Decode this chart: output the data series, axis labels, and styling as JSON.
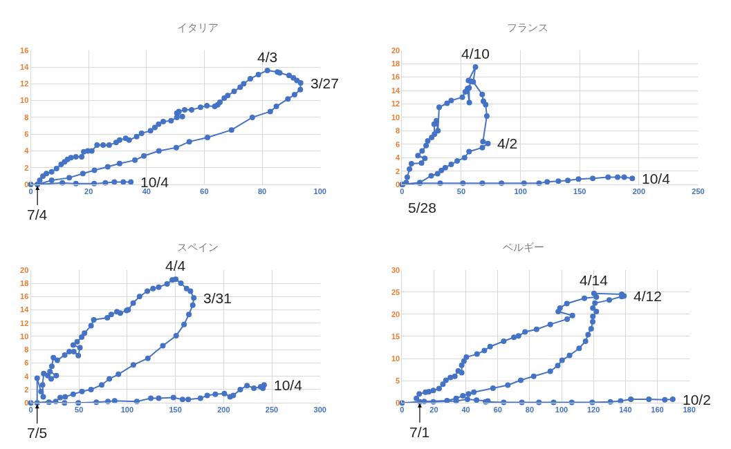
{
  "chart_data": [
    {
      "type": "line",
      "title": "イタリア",
      "marker": "circle",
      "grid": true,
      "xlim": [
        0,
        100
      ],
      "xticks": [
        0,
        20,
        40,
        60,
        80,
        100
      ],
      "ylim": [
        0,
        16
      ],
      "yticks": [
        0,
        2,
        4,
        6,
        8,
        10,
        12,
        14,
        16
      ],
      "series": [
        {
          "color": "#4472c4",
          "x": [
            0,
            2.3,
            7.2,
            13.3,
            18,
            22,
            26.6,
            30.7,
            36,
            39.1,
            44.3,
            50.3,
            54.8,
            61.1,
            69.4,
            76.6,
            82.8,
            84.9,
            88.9,
            91.2,
            93.2,
            93.3,
            92,
            90.8,
            89.3,
            86.1,
            85.3,
            81.8,
            78.7,
            75.9,
            73.6,
            72.4,
            70.3,
            68.1,
            66.9,
            65.4,
            64.6,
            63.6,
            60.9,
            58.7,
            55.6,
            53.2,
            51.2,
            50.5,
            52.4,
            50.5,
            48.5,
            45.8,
            44.2,
            42.9,
            41.4,
            38.3,
            36.6,
            34,
            32.8,
            30.7,
            29.5,
            27.1,
            25,
            22.9,
            21.1,
            19.7,
            18.3,
            17.6,
            15.6,
            13.9,
            12.7,
            11.7,
            10.5,
            8.9,
            7.2,
            5.4,
            4.2,
            3.1,
            2.3,
            10.9,
            15.6,
            21.9,
            25.8,
            28.9,
            32,
            34.6
          ],
          "values": [
            0,
            0,
            0.5,
            0.8,
            1.3,
            1.7,
            2.1,
            2.5,
            2.9,
            3.4,
            4.0,
            4.4,
            5.1,
            5.6,
            6.5,
            8.0,
            8.7,
            9.3,
            10.2,
            10.7,
            11.3,
            12.1,
            12.4,
            12.7,
            13.0,
            13.3,
            13.4,
            13.6,
            13.1,
            12.6,
            12.0,
            11.6,
            11.1,
            10.6,
            10.3,
            9.8,
            9.5,
            9.3,
            9.4,
            9.2,
            8.9,
            8.9,
            8.7,
            8.5,
            8.1,
            8.0,
            7.6,
            7.5,
            7.2,
            6.8,
            6.4,
            6.1,
            5.7,
            5.3,
            5.5,
            5.3,
            5.0,
            4.7,
            4.7,
            4.7,
            4.0,
            4.0,
            3.9,
            3.3,
            3.3,
            3.2,
            3.0,
            2.7,
            2.4,
            1.9,
            1.5,
            1.3,
            1.0,
            0.5,
            0,
            0.2,
            0.1,
            0.1,
            0.2,
            0.3,
            0.3,
            0.3
          ]
        }
      ],
      "annotations": [
        {
          "text": "4/3",
          "x": 81.8,
          "y": 13.6
        },
        {
          "text": "3/27",
          "x": 93.3,
          "y": 12.1
        },
        {
          "text": "10/4",
          "x": 34.6,
          "y": 0.3
        },
        {
          "text": "7/4",
          "x": 2.3,
          "y": 0
        }
      ]
    },
    {
      "type": "line",
      "title": "フランス",
      "marker": "circle",
      "grid": true,
      "xlim": [
        0,
        250
      ],
      "xticks": [
        0,
        50,
        100,
        150,
        200,
        250
      ],
      "ylim": [
        0,
        20
      ],
      "yticks": [
        0,
        2,
        4,
        6,
        8,
        10,
        12,
        14,
        16,
        18,
        20
      ],
      "series": [
        {
          "color": "#4472c4",
          "x": [
            0,
            15,
            24.6,
            30,
            33.2,
            36.5,
            41.5,
            46.6,
            52.8,
            56.6,
            67.8,
            72.5,
            68.3,
            71.6,
            70.6,
            68.7,
            67.7,
            60.1,
            62,
            56.1,
            58,
            56.6,
            56.8,
            55.3,
            53.4,
            50.9,
            41.5,
            38,
            31.3,
            30.3,
            29,
            27.1,
            27.4,
            25,
            21.7,
            20.3,
            16.9,
            13.4,
            19.2,
            16.5,
            7.9,
            6.3,
            4.4,
            3.5,
            0.6,
            15,
            32.2,
            51.4,
            67.8,
            84,
            103,
            115.7,
            122.5,
            132,
            140,
            149,
            161,
            174,
            182,
            187.6,
            194.4
          ],
          "values": [
            0,
            0.3,
            1.3,
            1.6,
            2.1,
            2.5,
            3.0,
            3.5,
            4.0,
            4.9,
            5.5,
            6.1,
            6.4,
            10.2,
            11.9,
            12.4,
            13.4,
            15.3,
            17.5,
            15.5,
            15.4,
            14.4,
            12.2,
            14.3,
            13.8,
            13.0,
            12.5,
            12.1,
            11.5,
            8.0,
            9.5,
            9.0,
            7.5,
            7.0,
            6.5,
            5.8,
            5.0,
            4.3,
            3.9,
            3.2,
            3.1,
            2.3,
            1.1,
            0.3,
            0,
            0.2,
            0.2,
            0.2,
            0.2,
            0.2,
            0.2,
            0.2,
            0.4,
            0.5,
            0.6,
            0.8,
            0.9,
            1.1,
            1.1,
            1.1,
            0.9
          ]
        }
      ],
      "annotations": [
        {
          "text": "4/10",
          "x": 62,
          "y": 17.5
        },
        {
          "text": "4/2",
          "x": 72.5,
          "y": 6.1
        },
        {
          "text": "10/4",
          "x": 194.4,
          "y": 0.9
        },
        {
          "text": "5/28",
          "x": 0.6,
          "y": 0
        }
      ]
    },
    {
      "type": "line",
      "title": "スペイン",
      "marker": "circle",
      "grid": true,
      "xlim": [
        0,
        300
      ],
      "xticks": [
        0,
        50,
        100,
        150,
        200,
        250,
        300
      ],
      "ylim": [
        0,
        20
      ],
      "yticks": [
        0,
        2,
        4,
        6,
        8,
        10,
        12,
        14,
        16,
        18,
        20
      ],
      "series": [
        {
          "color": "#4472c4",
          "x": [
            0,
            25.8,
            30.5,
            35.7,
            44,
            53.1,
            62.5,
            73.5,
            81.5,
            90.9,
            106.4,
            121.4,
            137,
            150.8,
            159,
            164,
            168,
            169.1,
            165.6,
            161.6,
            155.7,
            150.3,
            146.8,
            141.4,
            132.7,
            126.8,
            120.9,
            112.8,
            106.2,
            101,
            99.4,
            92.8,
            89.3,
            83.4,
            79.4,
            65.3,
            62.5,
            55.7,
            52.8,
            48.1,
            44,
            51,
            49.3,
            44.6,
            39.9,
            35.2,
            27.5,
            23.5,
            21.8,
            19.9,
            26.4,
            21.1,
            17.6,
            13.4,
            12.2,
            12.9,
            10.6,
            6.6,
            6.6,
            18.8,
            35,
            49.3,
            68,
            80,
            87,
            110,
            124.5,
            132.7,
            148,
            157.4,
            163.3,
            176,
            183,
            191.4,
            200.8,
            206.7,
            210,
            217.3,
            224.3,
            231.4,
            238.4,
            242,
            240.8
          ],
          "values": [
            0,
            0.2,
            0.8,
            0.9,
            1.3,
            1.7,
            2.0,
            2.7,
            3.6,
            4.3,
            5.7,
            6.7,
            8.6,
            10.1,
            11.8,
            13.3,
            14.7,
            15.8,
            16.8,
            17.2,
            18.0,
            18.6,
            18.5,
            17.9,
            17.4,
            17.2,
            16.8,
            16.0,
            15.0,
            14.0,
            13.9,
            13.5,
            13.7,
            13.3,
            12.8,
            12.5,
            11.6,
            10.5,
            9.9,
            9.2,
            8.7,
            8.3,
            7.1,
            7.7,
            7.7,
            7.2,
            6.4,
            6.8,
            5.5,
            4.7,
            4.1,
            3.6,
            4.1,
            4.4,
            2.7,
            0.9,
            1.7,
            3.7,
            0,
            0.1,
            0,
            0,
            0.1,
            0.2,
            0.3,
            0.2,
            0.7,
            0.7,
            0.8,
            0.5,
            0.5,
            0.7,
            1.1,
            1.3,
            1.4,
            0.9,
            1.1,
            2.0,
            2.6,
            2.2,
            2.4,
            2.7,
            2.2
          ]
        }
      ],
      "annotations": [
        {
          "text": "4/4",
          "x": 150.3,
          "y": 18.6
        },
        {
          "text": "3/31",
          "x": 169.1,
          "y": 15.8
        },
        {
          "text": "10/4",
          "x": 242,
          "y": 2.7
        },
        {
          "text": "7/5",
          "x": 6.6,
          "y": 0
        }
      ]
    },
    {
      "type": "line",
      "title": "ベルギー",
      "marker": "circle",
      "grid": true,
      "xlim": [
        0,
        180
      ],
      "xticks": [
        0,
        20,
        40,
        60,
        80,
        100,
        120,
        140,
        160,
        180
      ],
      "ylim": [
        0,
        30
      ],
      "yticks": [
        0,
        5,
        10,
        15,
        20,
        25,
        30
      ],
      "series": [
        {
          "color": "#4472c4",
          "x": [
            0,
            13.9,
            28.2,
            33.9,
            38.1,
            41.7,
            45,
            57,
            66.3,
            74.4,
            82.5,
            92.9,
            97.6,
            100.3,
            105,
            111,
            115,
            116.6,
            118.5,
            119.5,
            119.6,
            121.8,
            119.6,
            120.9,
            129.9,
            137.7,
            139.1,
            137.7,
            120.3,
            121.8,
            114.3,
            103.3,
            99,
            97.9,
            106.8,
            103.5,
            92.9,
            84.3,
            77.1,
            73,
            70.1,
            63.7,
            55.2,
            51.6,
            47,
            40.3,
            38.8,
            37.4,
            37.4,
            35.2,
            33.1,
            30.3,
            27.5,
            25.6,
            23.2,
            19.6,
            16.8,
            14.7,
            10.8,
            9,
            11.1,
            19.6,
            33.9,
            41,
            46.7,
            53.8,
            52.3,
            63.7,
            75.1,
            85.8,
            95,
            106.4,
            119.2,
            130.6,
            137,
            143.4,
            154.7,
            164.7,
            169.7
          ],
          "values": [
            0,
            0.3,
            0.5,
            1.0,
            1.6,
            2.0,
            2.4,
            3.3,
            4.0,
            5.1,
            6.0,
            7.1,
            8.4,
            9.6,
            10.7,
            12.3,
            13.9,
            15.4,
            16.7,
            18.3,
            19.5,
            20.6,
            21.4,
            22.5,
            23.2,
            24.0,
            24.1,
            24.5,
            24.7,
            23.9,
            23.6,
            22.4,
            21.4,
            20.6,
            19.7,
            18.9,
            17.7,
            16.6,
            16.0,
            15.1,
            14.8,
            13.9,
            12.7,
            11.8,
            11.0,
            10.3,
            9.4,
            8.5,
            6.8,
            7.2,
            6.0,
            5.7,
            5.1,
            4.2,
            3.2,
            2.8,
            2.5,
            2.4,
            2.0,
            1.0,
            0.2,
            0.2,
            0.4,
            0.8,
            0.6,
            0.4,
            0.2,
            0.1,
            0.1,
            0.1,
            0.1,
            0.1,
            0.1,
            0.2,
            0.4,
            0.8,
            0.8,
            0.7,
            0.8
          ]
        }
      ],
      "annotations": [
        {
          "text": "4/14",
          "x": 120.3,
          "y": 24.7
        },
        {
          "text": "4/12",
          "x": 139.1,
          "y": 24.1
        },
        {
          "text": "10/2",
          "x": 169.7,
          "y": 0.8
        },
        {
          "text": "7/1",
          "x": 11.1,
          "y": 0.2
        }
      ]
    }
  ]
}
